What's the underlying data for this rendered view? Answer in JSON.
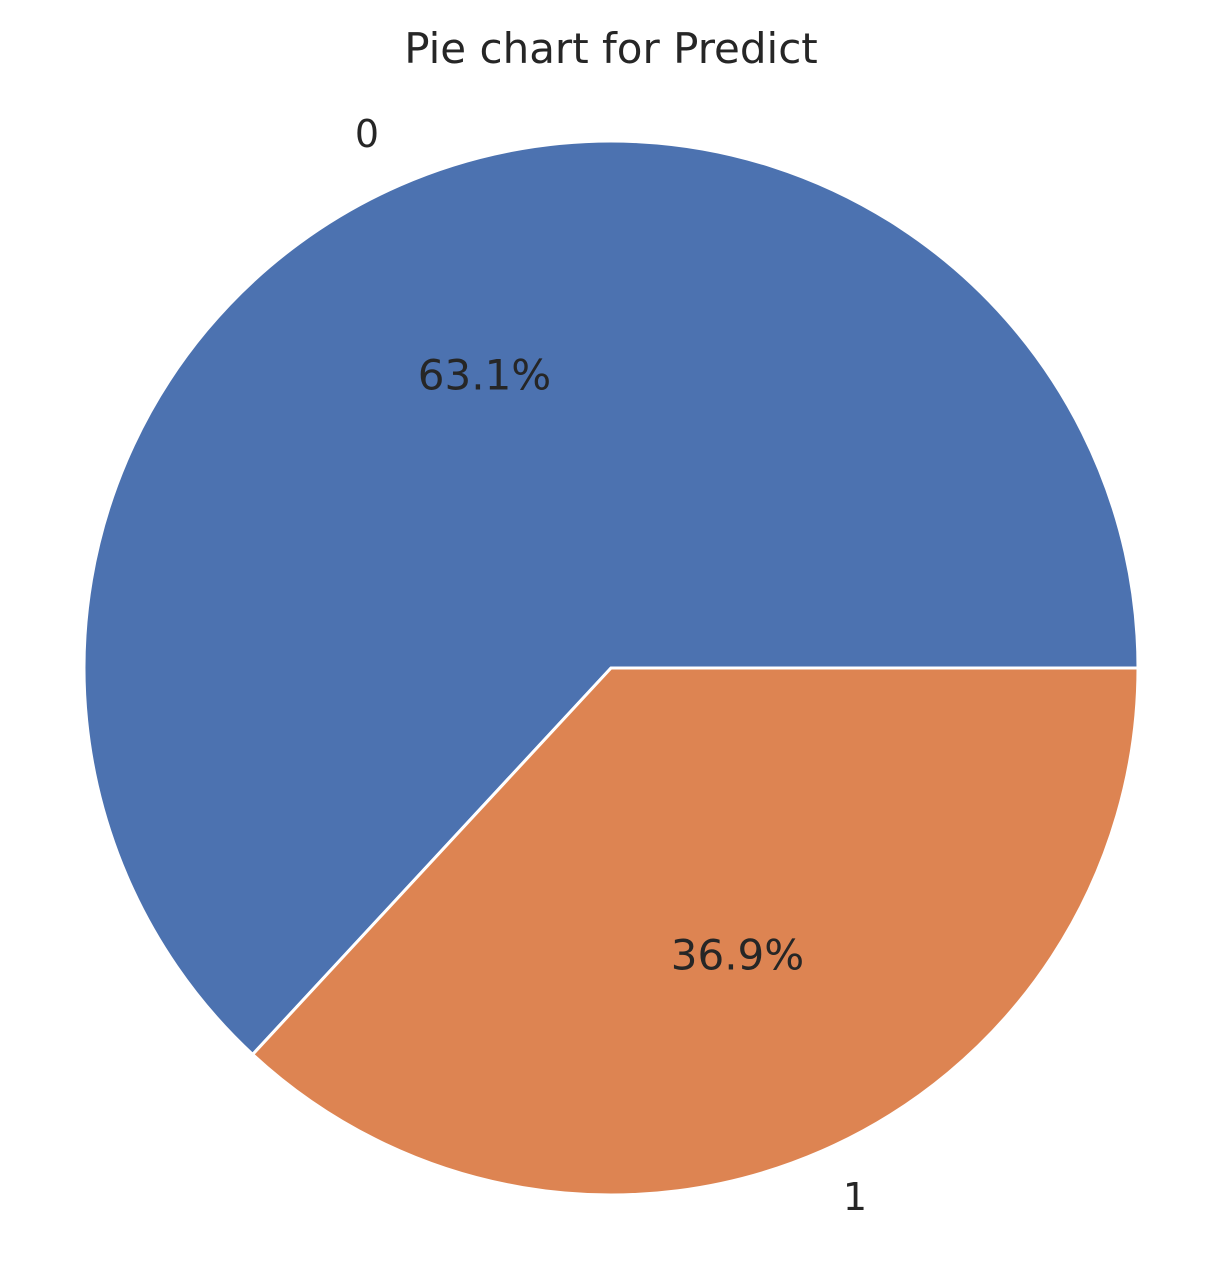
{
  "chart_data": {
    "type": "pie",
    "title": "Pie chart for Predict",
    "categories": [
      "0",
      "1"
    ],
    "values": [
      63.1,
      36.9
    ],
    "value_labels": [
      "63.1%",
      "36.9%"
    ],
    "colors": [
      "#4c72b0",
      "#dd8452"
    ],
    "start_angle_deg": 0,
    "direction": "counterclockwise",
    "edge_color": "#ffffff"
  }
}
